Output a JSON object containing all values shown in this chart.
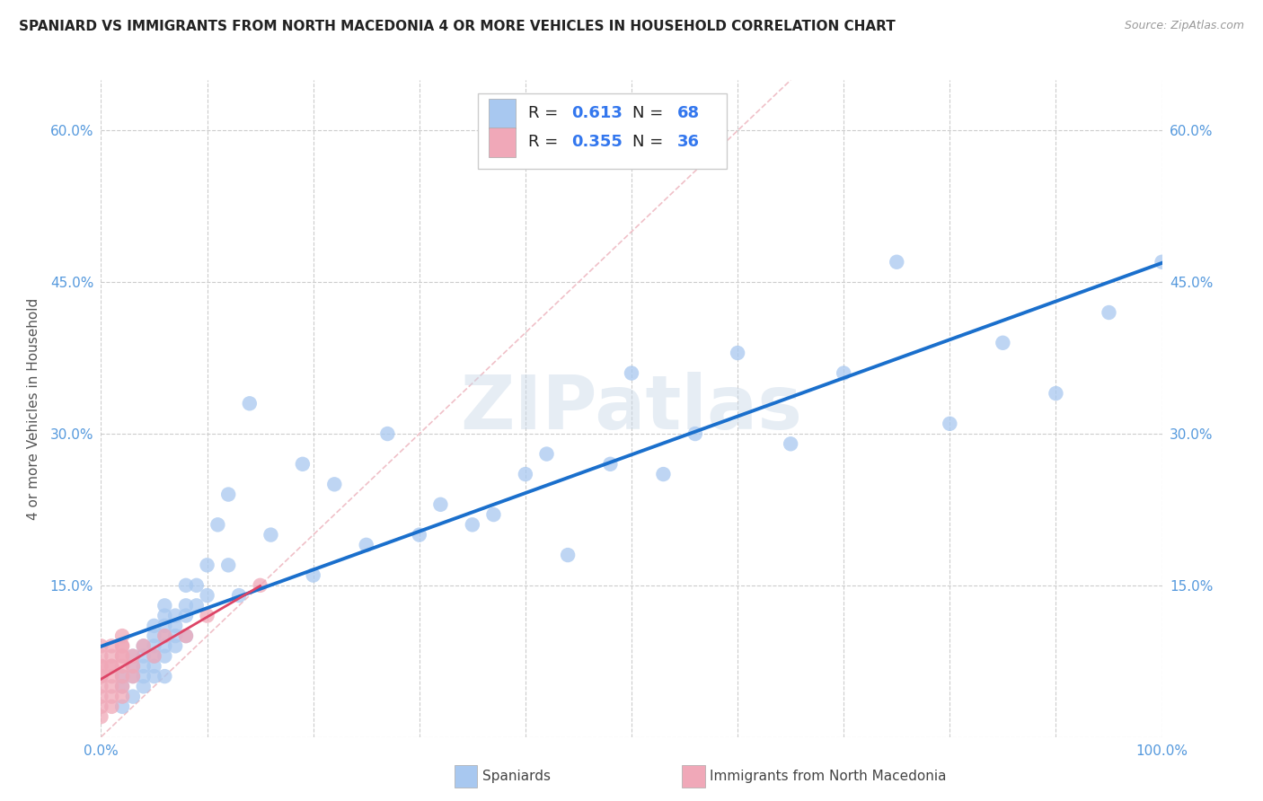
{
  "title": "SPANIARD VS IMMIGRANTS FROM NORTH MACEDONIA 4 OR MORE VEHICLES IN HOUSEHOLD CORRELATION CHART",
  "source": "Source: ZipAtlas.com",
  "ylabel": "4 or more Vehicles in Household",
  "xlabel": "",
  "xlim": [
    0.0,
    1.0
  ],
  "ylim": [
    0.0,
    0.65
  ],
  "xticks": [
    0.0,
    0.1,
    0.2,
    0.3,
    0.4,
    0.5,
    0.6,
    0.7,
    0.8,
    0.9,
    1.0
  ],
  "xticklabels": [
    "0.0%",
    "",
    "",
    "",
    "",
    "",
    "",
    "",
    "",
    "",
    "100.0%"
  ],
  "yticks": [
    0.0,
    0.15,
    0.3,
    0.45,
    0.6
  ],
  "yticklabels": [
    "",
    "15.0%",
    "30.0%",
    "45.0%",
    "60.0%"
  ],
  "right_yticklabels": [
    "",
    "15.0%",
    "30.0%",
    "45.0%",
    "60.0%"
  ],
  "legend_R_spaniards": "0.613",
  "legend_N_spaniards": "68",
  "legend_R_immigrants": "0.355",
  "legend_N_immigrants": "36",
  "spaniard_color": "#a8c8f0",
  "immigrant_color": "#f0a8b8",
  "spaniard_line_color": "#1a6fcc",
  "immigrant_line_color": "#dd4466",
  "diagonal_color": "#e0b0b8",
  "background_color": "#ffffff",
  "watermark": "ZIPatlas",
  "spaniard_x": [
    0.02,
    0.02,
    0.02,
    0.03,
    0.03,
    0.03,
    0.03,
    0.04,
    0.04,
    0.04,
    0.04,
    0.04,
    0.05,
    0.05,
    0.05,
    0.05,
    0.05,
    0.05,
    0.06,
    0.06,
    0.06,
    0.06,
    0.06,
    0.06,
    0.06,
    0.07,
    0.07,
    0.07,
    0.07,
    0.08,
    0.08,
    0.08,
    0.08,
    0.09,
    0.09,
    0.1,
    0.1,
    0.11,
    0.12,
    0.12,
    0.13,
    0.14,
    0.16,
    0.19,
    0.2,
    0.22,
    0.25,
    0.27,
    0.3,
    0.32,
    0.35,
    0.37,
    0.4,
    0.42,
    0.44,
    0.48,
    0.5,
    0.53,
    0.56,
    0.6,
    0.65,
    0.7,
    0.75,
    0.8,
    0.85,
    0.9,
    0.95,
    1.0
  ],
  "spaniard_y": [
    0.03,
    0.05,
    0.06,
    0.04,
    0.06,
    0.07,
    0.08,
    0.05,
    0.06,
    0.07,
    0.08,
    0.09,
    0.06,
    0.07,
    0.08,
    0.09,
    0.1,
    0.11,
    0.06,
    0.08,
    0.09,
    0.1,
    0.11,
    0.12,
    0.13,
    0.09,
    0.1,
    0.11,
    0.12,
    0.1,
    0.12,
    0.13,
    0.15,
    0.13,
    0.15,
    0.14,
    0.17,
    0.21,
    0.17,
    0.24,
    0.14,
    0.33,
    0.2,
    0.27,
    0.16,
    0.25,
    0.19,
    0.3,
    0.2,
    0.23,
    0.21,
    0.22,
    0.26,
    0.28,
    0.18,
    0.27,
    0.36,
    0.26,
    0.3,
    0.38,
    0.29,
    0.36,
    0.47,
    0.31,
    0.39,
    0.34,
    0.42,
    0.47
  ],
  "immigrant_x": [
    0.0,
    0.0,
    0.0,
    0.0,
    0.0,
    0.0,
    0.0,
    0.0,
    0.0,
    0.0,
    0.01,
    0.01,
    0.01,
    0.01,
    0.01,
    0.01,
    0.01,
    0.01,
    0.02,
    0.02,
    0.02,
    0.02,
    0.02,
    0.02,
    0.02,
    0.02,
    0.02,
    0.03,
    0.03,
    0.03,
    0.04,
    0.05,
    0.06,
    0.08,
    0.1,
    0.15
  ],
  "immigrant_y": [
    0.02,
    0.03,
    0.04,
    0.05,
    0.06,
    0.06,
    0.07,
    0.07,
    0.08,
    0.09,
    0.03,
    0.04,
    0.05,
    0.06,
    0.07,
    0.07,
    0.08,
    0.09,
    0.04,
    0.05,
    0.06,
    0.07,
    0.08,
    0.08,
    0.09,
    0.09,
    0.1,
    0.06,
    0.07,
    0.08,
    0.09,
    0.08,
    0.1,
    0.1,
    0.12,
    0.15
  ],
  "sp_line_x": [
    0.0,
    1.0
  ],
  "sp_line_y": [
    0.015,
    0.47
  ],
  "im_line_x": [
    0.0,
    0.15
  ],
  "im_line_y": [
    0.04,
    0.15
  ]
}
